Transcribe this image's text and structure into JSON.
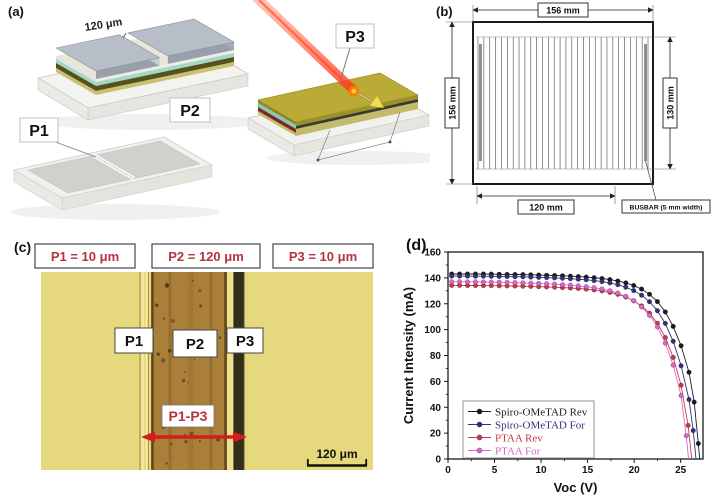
{
  "panel_a": {
    "label": "(a)",
    "gap_label": "120 μm",
    "p1": "P1",
    "p2": "P2",
    "p3": "P3"
  },
  "panel_b": {
    "label": "(b)",
    "dim_top": "156 mm",
    "dim_left": "156 mm",
    "dim_right": "130 mm",
    "dim_bottom": "120 mm",
    "busbar": "BUSBAR (5 mm width)",
    "stripe_count": 30
  },
  "panel_c": {
    "label": "(c)",
    "headers": [
      "P1 = 10 μm",
      "P2 = 120 μm",
      "P3 = 10 μm"
    ],
    "p1": "P1",
    "p2": "P2",
    "p3": "P3",
    "span": "P1-P3",
    "scalebar": "120 μm",
    "annotation_red": "#b5323f",
    "arrow_red": "#d41d1d"
  },
  "panel_d": {
    "label": "(d)"
  },
  "chart_data": {
    "type": "line",
    "title": "",
    "xlabel": "Voc (V)",
    "ylabel": "Current Intensity (mA)",
    "xlim": [
      0,
      27.4
    ],
    "ylim": [
      0,
      160
    ],
    "xticks": [
      0,
      5,
      10,
      15,
      20,
      25
    ],
    "yticks": [
      0,
      20,
      40,
      60,
      80,
      100,
      120,
      140,
      160
    ],
    "grid": false,
    "legend_position": "inside lower-left",
    "series": [
      {
        "name": "Spiro-OMeTAD Rev",
        "color": "#1b1b24",
        "points": [
          [
            0.4,
            143
          ],
          [
            1.25,
            143
          ],
          [
            2.1,
            143
          ],
          [
            2.95,
            143
          ],
          [
            3.8,
            143
          ],
          [
            4.65,
            142.9
          ],
          [
            5.5,
            142.8
          ],
          [
            6.35,
            142.7
          ],
          [
            7.2,
            142.6
          ],
          [
            8.05,
            142.5
          ],
          [
            8.9,
            142.4
          ],
          [
            9.75,
            142.2
          ],
          [
            10.6,
            142
          ],
          [
            11.45,
            141.8
          ],
          [
            12.3,
            141.6
          ],
          [
            13.15,
            141.3
          ],
          [
            14,
            141
          ],
          [
            14.85,
            140.6
          ],
          [
            15.7,
            140.1
          ],
          [
            16.55,
            139.5
          ],
          [
            17.4,
            138.7
          ],
          [
            18.25,
            137.6
          ],
          [
            19.1,
            136.1
          ],
          [
            19.95,
            134.1
          ],
          [
            20.8,
            131.3
          ],
          [
            21.65,
            127.3
          ],
          [
            22.5,
            121.7
          ],
          [
            23.35,
            113.7
          ],
          [
            24.2,
            102.5
          ],
          [
            25.05,
            87.5
          ],
          [
            25.9,
            67
          ],
          [
            26.45,
            44
          ],
          [
            26.9,
            12
          ],
          [
            27.05,
            0
          ]
        ]
      },
      {
        "name": "Spiro-OMeTAD For",
        "color": "#32327f",
        "points": [
          [
            0.4,
            141.4
          ],
          [
            1.25,
            141.4
          ],
          [
            2.1,
            141.4
          ],
          [
            2.95,
            141.3
          ],
          [
            3.8,
            141.3
          ],
          [
            4.65,
            141.2
          ],
          [
            5.5,
            141.1
          ],
          [
            6.35,
            141
          ],
          [
            7.2,
            140.9
          ],
          [
            8.05,
            140.8
          ],
          [
            8.9,
            140.6
          ],
          [
            9.75,
            140.4
          ],
          [
            10.6,
            140.2
          ],
          [
            11.45,
            140
          ],
          [
            12.3,
            139.7
          ],
          [
            13.15,
            139.4
          ],
          [
            14,
            139
          ],
          [
            14.85,
            138.5
          ],
          [
            15.7,
            137.9
          ],
          [
            16.55,
            137.1
          ],
          [
            17.4,
            136.1
          ],
          [
            18.25,
            134.7
          ],
          [
            19.1,
            132.8
          ],
          [
            19.95,
            130.2
          ],
          [
            20.8,
            126.6
          ],
          [
            21.65,
            121.6
          ],
          [
            22.5,
            114.6
          ],
          [
            23.35,
            104.8
          ],
          [
            24.2,
            91
          ],
          [
            25.05,
            72
          ],
          [
            25.9,
            46
          ],
          [
            26.35,
            22
          ],
          [
            26.65,
            0
          ]
        ]
      },
      {
        "name": "PTAA Rev",
        "color": "#c43b4a",
        "points": [
          [
            0.4,
            134.2
          ],
          [
            1.25,
            134.2
          ],
          [
            2.1,
            134.1
          ],
          [
            2.95,
            134.1
          ],
          [
            3.8,
            134
          ],
          [
            4.65,
            134
          ],
          [
            5.5,
            133.9
          ],
          [
            6.35,
            133.8
          ],
          [
            7.2,
            133.7
          ],
          [
            8.05,
            133.6
          ],
          [
            8.9,
            133.4
          ],
          [
            9.75,
            133.2
          ],
          [
            10.6,
            133
          ],
          [
            11.45,
            132.8
          ],
          [
            12.3,
            132.5
          ],
          [
            13.15,
            132.2
          ],
          [
            14,
            131.8
          ],
          [
            14.85,
            131.3
          ],
          [
            15.7,
            130.7
          ],
          [
            16.55,
            129.9
          ],
          [
            17.4,
            128.8
          ],
          [
            18.25,
            127.3
          ],
          [
            19.1,
            125.2
          ],
          [
            19.95,
            122.3
          ],
          [
            20.8,
            118.3
          ],
          [
            21.65,
            112.7
          ],
          [
            22.5,
            104.9
          ],
          [
            23.35,
            93.9
          ],
          [
            24.2,
            78.5
          ],
          [
            25.05,
            57
          ],
          [
            25.8,
            26
          ],
          [
            26.2,
            0
          ]
        ]
      },
      {
        "name": "PTAA For",
        "color": "#dd66cc",
        "points": [
          [
            0.4,
            137
          ],
          [
            1.25,
            137
          ],
          [
            2.1,
            136.9
          ],
          [
            2.95,
            136.9
          ],
          [
            3.8,
            136.8
          ],
          [
            4.65,
            136.7
          ],
          [
            5.5,
            136.6
          ],
          [
            6.35,
            136.5
          ],
          [
            7.2,
            136.3
          ],
          [
            8.05,
            136.1
          ],
          [
            8.9,
            135.9
          ],
          [
            9.75,
            135.7
          ],
          [
            10.6,
            135.4
          ],
          [
            11.45,
            135.1
          ],
          [
            12.3,
            134.7
          ],
          [
            13.15,
            134.3
          ],
          [
            14,
            133.8
          ],
          [
            14.85,
            133.2
          ],
          [
            15.7,
            132.4
          ],
          [
            16.55,
            131.4
          ],
          [
            17.4,
            130
          ],
          [
            18.25,
            128.2
          ],
          [
            19.1,
            125.7
          ],
          [
            19.95,
            122.3
          ],
          [
            20.8,
            117.6
          ],
          [
            21.65,
            111.1
          ],
          [
            22.5,
            102.1
          ],
          [
            23.35,
            89.6
          ],
          [
            24.2,
            72.6
          ],
          [
            25.05,
            49
          ],
          [
            25.6,
            18
          ],
          [
            25.85,
            0
          ]
        ]
      }
    ]
  }
}
